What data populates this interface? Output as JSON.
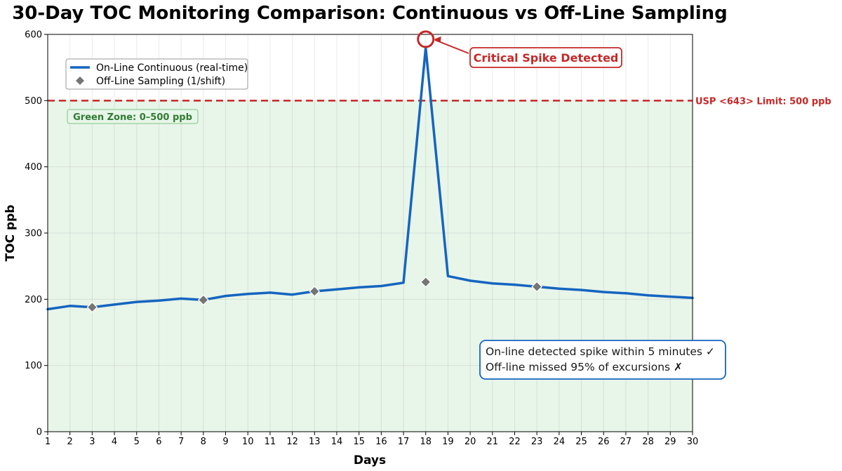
{
  "chart_data": {
    "type": "line",
    "title": "30-Day TOC Monitoring Comparison: Continuous vs Off-Line Sampling",
    "xlabel": "Days",
    "ylabel": "TOC ppb",
    "xlim": [
      1,
      30
    ],
    "ylim": [
      0,
      600
    ],
    "x_ticks": [
      1,
      2,
      3,
      4,
      5,
      6,
      7,
      8,
      9,
      10,
      11,
      12,
      13,
      14,
      15,
      16,
      17,
      18,
      19,
      20,
      21,
      22,
      23,
      24,
      25,
      26,
      27,
      28,
      29,
      30
    ],
    "y_ticks": [
      0,
      100,
      200,
      300,
      400,
      500,
      600
    ],
    "grid": true,
    "legend_position": "upper-left",
    "series": [
      {
        "name": "On-Line Continuous (real-time)",
        "style": "line",
        "color": "#1565c0",
        "x": [
          1,
          2,
          3,
          4,
          5,
          6,
          7,
          8,
          9,
          10,
          11,
          12,
          13,
          14,
          15,
          16,
          17,
          18,
          19,
          20,
          21,
          22,
          23,
          24,
          25,
          26,
          27,
          28,
          29,
          30
        ],
        "y": [
          185,
          190,
          188,
          192,
          196,
          198,
          201,
          199,
          205,
          208,
          210,
          207,
          212,
          215,
          218,
          220,
          225,
          580,
          235,
          228,
          224,
          222,
          219,
          216,
          214,
          211,
          209,
          206,
          204,
          202
        ]
      },
      {
        "name": "Off-Line Sampling (1/shift)",
        "style": "marker",
        "marker": "diamond",
        "color": "#757575",
        "x": [
          3,
          8,
          13,
          18,
          23
        ],
        "y": [
          188,
          199,
          212,
          226,
          219
        ]
      }
    ],
    "limit_line": {
      "value": 500,
      "label": "USP <643> Limit: 500 ppb",
      "color": "#c62828"
    },
    "green_zone": {
      "from": 0,
      "to": 500,
      "label": "Green Zone: 0–500 ppb",
      "color": "#e8f5e9",
      "text_color": "#2e7d32"
    },
    "spike_annotation": {
      "x": 18,
      "y": 580,
      "label": "Critical Spike Detected",
      "color": "#c62828"
    },
    "info_box": {
      "lines": [
        "On-line detected spike within 5 minutes ✓",
        "Off-line missed 95% of excursions ✗"
      ],
      "border_color": "#1565c0"
    }
  }
}
